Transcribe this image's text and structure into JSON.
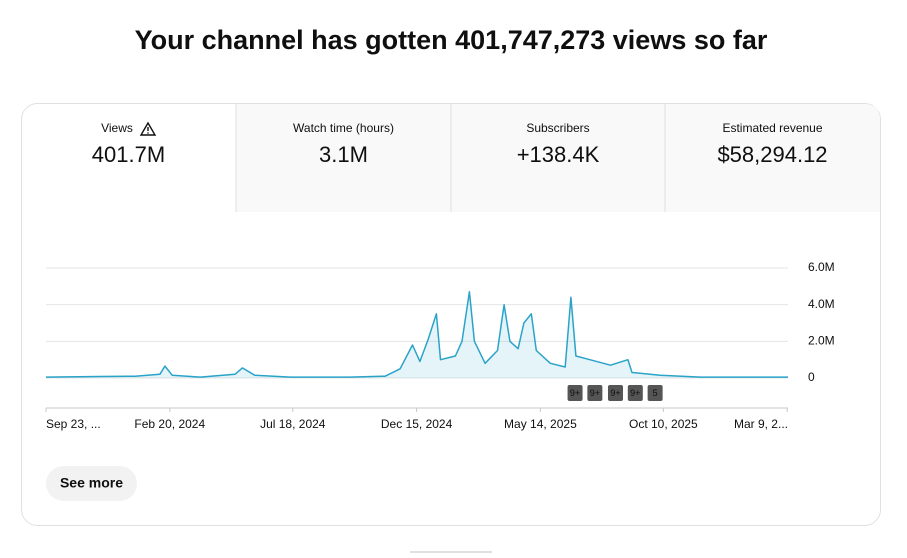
{
  "title": "Your channel has gotten 401,747,273 views so far",
  "tabs": [
    {
      "label": "Views",
      "value": "401.7M"
    },
    {
      "label": "Watch time (hours)",
      "value": "3.1M"
    },
    {
      "label": "Subscribers",
      "value": "+138.4K"
    },
    {
      "label": "Estimated revenue",
      "value": "$58,294.12"
    }
  ],
  "chart_data": {
    "type": "line",
    "x": [
      "2023-09-23",
      "2023-11-27",
      "2024-01-09",
      "2024-02-08",
      "2024-02-14",
      "2024-02-23",
      "2024-03-28",
      "2024-05-09",
      "2024-05-18",
      "2024-06-02",
      "2024-07-15",
      "2024-09-25",
      "2024-11-07",
      "2024-11-25",
      "2024-12-10",
      "2024-12-19",
      "2024-12-29",
      "2025-01-08",
      "2025-01-13",
      "2025-01-31",
      "2025-02-08",
      "2025-02-17",
      "2025-02-23",
      "2025-03-08",
      "2025-03-23",
      "2025-03-31",
      "2025-04-07",
      "2025-04-17",
      "2025-04-24",
      "2025-05-03",
      "2025-05-09",
      "2025-05-26",
      "2025-06-13",
      "2025-06-20",
      "2025-06-26",
      "2025-07-13",
      "2025-08-07",
      "2025-08-28",
      "2025-09-02",
      "2025-10-06",
      "2025-11-24",
      "2026-03-10"
    ],
    "series": [
      {
        "name": "Views",
        "color": "#2aa3c9",
        "values": [
          50000,
          80000,
          100000,
          200000,
          650000,
          150000,
          50000,
          200000,
          550000,
          150000,
          50000,
          50000,
          100000,
          500000,
          1800000,
          900000,
          2100000,
          3500000,
          1000000,
          1200000,
          2000000,
          4700000,
          2000000,
          800000,
          1500000,
          4000000,
          2000000,
          1600000,
          3000000,
          3500000,
          1500000,
          800000,
          600000,
          4400000,
          1200000,
          1000000,
          700000,
          1000000,
          300000,
          150000,
          50000,
          50000
        ]
      }
    ],
    "xlim": [
      "2023-09-23",
      "2026-03-10"
    ],
    "xticks": [
      {
        "value": "2023-09-23",
        "label": "Sep 23, ..."
      },
      {
        "value": "2024-02-20",
        "label": "Feb 20, 2024"
      },
      {
        "value": "2024-07-18",
        "label": "Jul 18, 2024"
      },
      {
        "value": "2024-12-15",
        "label": "Dec 15, 2024"
      },
      {
        "value": "2025-05-14",
        "label": "May 14, 2025"
      },
      {
        "value": "2025-10-10",
        "label": "Oct 10, 2025"
      },
      {
        "value": "2026-03-09",
        "label": "Mar 9, 2..."
      }
    ],
    "ylim": [
      0,
      6000000
    ],
    "yticks": [
      0,
      {
        "value": 2000000,
        "label": "2.0M"
      },
      {
        "value": 4000000,
        "label": "4.0M"
      },
      {
        "value": 6000000,
        "label": "6.0M"
      }
    ],
    "grid": true,
    "annotations": [
      {
        "x": "2025-06-25",
        "label": "9+"
      },
      {
        "x": "2025-07-19",
        "label": "9+"
      },
      {
        "x": "2025-08-13",
        "label": "9+"
      },
      {
        "x": "2025-09-06",
        "label": "9+"
      },
      {
        "x": "2025-09-30",
        "label": "5"
      }
    ]
  },
  "button": "See more"
}
